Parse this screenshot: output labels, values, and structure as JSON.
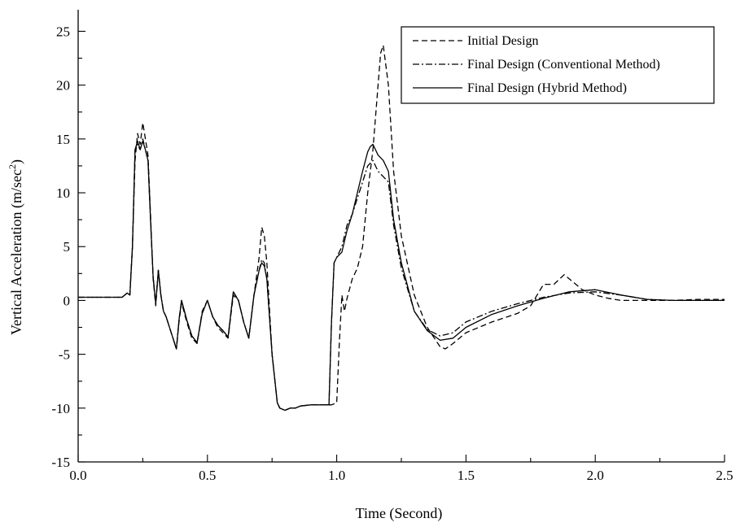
{
  "chart_data": {
    "type": "line",
    "xlabel": "Time (Second)",
    "ylabel": "Vertical Acceleration (m/sec",
    "ylabel_sup": "2",
    "ylabel_close": ")",
    "xlim": [
      0.0,
      2.5
    ],
    "ylim": [
      -15,
      27
    ],
    "x_ticks": [
      0.0,
      0.5,
      1.0,
      1.5,
      2.0,
      2.5
    ],
    "x_tick_labels": [
      "0.0",
      "0.5",
      "1.0",
      "1.5",
      "2.0",
      "2.5"
    ],
    "y_ticks": [
      -15,
      -10,
      -5,
      0,
      5,
      10,
      15,
      20,
      25
    ],
    "y_tick_labels": [
      "-15",
      "-10",
      "-5",
      "0",
      "5",
      "10",
      "15",
      "20",
      "25"
    ],
    "grid": false,
    "legend_position": "top-right",
    "series": [
      {
        "name": "Initial Design",
        "dash": "dashed",
        "x": [
          0.0,
          0.17,
          0.19,
          0.2,
          0.21,
          0.22,
          0.23,
          0.24,
          0.25,
          0.26,
          0.27,
          0.28,
          0.29,
          0.3,
          0.31,
          0.32,
          0.33,
          0.34,
          0.36,
          0.38,
          0.39,
          0.4,
          0.42,
          0.44,
          0.46,
          0.48,
          0.5,
          0.52,
          0.54,
          0.56,
          0.58,
          0.6,
          0.62,
          0.64,
          0.66,
          0.68,
          0.7,
          0.71,
          0.72,
          0.73,
          0.75,
          0.77,
          0.78,
          0.8,
          0.82,
          0.84,
          0.86,
          0.9,
          0.94,
          0.98,
          1.0,
          1.01,
          1.02,
          1.03,
          1.04,
          1.06,
          1.08,
          1.1,
          1.12,
          1.14,
          1.16,
          1.17,
          1.18,
          1.2,
          1.22,
          1.25,
          1.3,
          1.35,
          1.4,
          1.42,
          1.45,
          1.5,
          1.6,
          1.7,
          1.75,
          1.8,
          1.84,
          1.88,
          1.9,
          1.95,
          2.0,
          2.05,
          2.1,
          2.2,
          2.3,
          2.4,
          2.5
        ],
        "y": [
          0.3,
          0.3,
          0.7,
          0.5,
          5,
          13,
          15.5,
          14.5,
          16.5,
          15,
          13.5,
          8,
          2,
          -0.5,
          2.8,
          0.5,
          -1,
          -1.5,
          -3,
          -4.5,
          -2,
          -0.2,
          -2,
          -3.5,
          -4,
          -1,
          0,
          -1.5,
          -2.5,
          -3,
          -3.5,
          0.5,
          0,
          -2,
          -3.5,
          0.5,
          4,
          6.8,
          6,
          3.5,
          -5,
          -9.5,
          -10,
          -10.2,
          -10,
          -10,
          -9.8,
          -9.7,
          -9.7,
          -9.7,
          -9.5,
          -4,
          0.5,
          -1,
          0.2,
          2,
          3,
          5,
          10,
          14,
          20,
          23,
          23.7,
          20,
          12,
          6,
          0.5,
          -2.5,
          -4.3,
          -4.5,
          -4,
          -3,
          -2,
          -1.2,
          -0.5,
          1.5,
          1.5,
          2.4,
          2,
          1,
          0.5,
          0.2,
          0,
          0,
          0,
          0.1,
          0.1
        ]
      },
      {
        "name": "Final Design (Conventional Method)",
        "dash": "dash-dot",
        "x": [
          0.0,
          0.17,
          0.19,
          0.2,
          0.21,
          0.22,
          0.23,
          0.24,
          0.25,
          0.26,
          0.27,
          0.28,
          0.29,
          0.3,
          0.31,
          0.32,
          0.33,
          0.34,
          0.36,
          0.38,
          0.39,
          0.4,
          0.42,
          0.44,
          0.46,
          0.48,
          0.5,
          0.52,
          0.54,
          0.56,
          0.58,
          0.6,
          0.62,
          0.64,
          0.66,
          0.68,
          0.7,
          0.71,
          0.72,
          0.73,
          0.75,
          0.77,
          0.78,
          0.8,
          0.82,
          0.84,
          0.86,
          0.9,
          0.94,
          0.97,
          0.98,
          0.99,
          1.0,
          1.02,
          1.04,
          1.06,
          1.08,
          1.1,
          1.12,
          1.14,
          1.16,
          1.18,
          1.2,
          1.22,
          1.25,
          1.3,
          1.35,
          1.4,
          1.45,
          1.5,
          1.6,
          1.7,
          1.8,
          1.9,
          2.0,
          2.1,
          2.2,
          2.3,
          2.4,
          2.5
        ],
        "y": [
          0.3,
          0.3,
          0.7,
          0.5,
          5,
          14,
          14.5,
          14,
          15,
          14,
          13,
          7.5,
          2.2,
          -0.3,
          2.8,
          0.5,
          -1,
          -1.5,
          -3,
          -4.5,
          -1.8,
          0,
          -1.8,
          -3.3,
          -3.9,
          -1.2,
          0,
          -1.5,
          -2.3,
          -2.8,
          -3.4,
          0.8,
          0,
          -2,
          -3.5,
          0.5,
          2.8,
          3.8,
          3.5,
          2,
          -5,
          -9.5,
          -10,
          -10.2,
          -10,
          -10,
          -9.8,
          -9.7,
          -9.7,
          -9.7,
          -2,
          3.5,
          4,
          5,
          7,
          8,
          9.5,
          11,
          12.5,
          13,
          12,
          11.5,
          11,
          7,
          3,
          -1,
          -2.7,
          -3.3,
          -3,
          -2,
          -1,
          -0.3,
          0.3,
          0.7,
          0.8,
          0.5,
          0.1,
          0,
          0,
          0
        ]
      },
      {
        "name": "Final Design (Hybrid Method)",
        "dash": "solid",
        "x": [
          0.0,
          0.17,
          0.19,
          0.2,
          0.21,
          0.22,
          0.23,
          0.24,
          0.25,
          0.26,
          0.27,
          0.28,
          0.29,
          0.3,
          0.31,
          0.32,
          0.33,
          0.34,
          0.36,
          0.38,
          0.39,
          0.4,
          0.42,
          0.44,
          0.46,
          0.48,
          0.5,
          0.52,
          0.54,
          0.56,
          0.58,
          0.6,
          0.62,
          0.64,
          0.66,
          0.68,
          0.7,
          0.71,
          0.72,
          0.73,
          0.75,
          0.77,
          0.78,
          0.8,
          0.82,
          0.84,
          0.86,
          0.9,
          0.94,
          0.97,
          0.98,
          0.99,
          1.0,
          1.02,
          1.04,
          1.06,
          1.08,
          1.1,
          1.12,
          1.13,
          1.14,
          1.16,
          1.18,
          1.2,
          1.22,
          1.25,
          1.3,
          1.35,
          1.4,
          1.45,
          1.5,
          1.6,
          1.7,
          1.8,
          1.9,
          2.0,
          2.1,
          2.2,
          2.3,
          2.4,
          2.5
        ],
        "y": [
          0.3,
          0.3,
          0.7,
          0.5,
          5,
          14,
          14.8,
          14,
          14.8,
          14,
          13,
          7.5,
          2.2,
          -0.3,
          2.8,
          0.5,
          -1,
          -1.5,
          -3,
          -4.5,
          -1.8,
          0,
          -1.8,
          -3.3,
          -3.9,
          -1.2,
          0,
          -1.5,
          -2.3,
          -2.8,
          -3.4,
          0.8,
          0,
          -2,
          -3.5,
          0.5,
          2.8,
          3.5,
          3.2,
          2,
          -5,
          -9.5,
          -10,
          -10.2,
          -10,
          -10,
          -9.8,
          -9.7,
          -9.7,
          -9.7,
          -2,
          3.5,
          4,
          4.5,
          6.5,
          8,
          10,
          12,
          13.8,
          14.3,
          14.5,
          13.5,
          13,
          12,
          7.5,
          3.5,
          -1,
          -2.8,
          -3.7,
          -3.5,
          -2.5,
          -1.3,
          -0.5,
          0.2,
          0.8,
          1,
          0.5,
          0.1,
          0,
          0,
          0
        ]
      }
    ]
  }
}
